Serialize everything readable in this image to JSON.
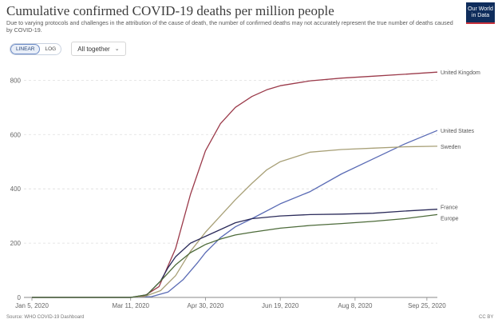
{
  "header": {
    "title": "Cumulative confirmed COVID-19 deaths per million people",
    "subtitle": "Due to varying protocols and challenges in the attribution of the cause of death, the number of confirmed deaths may not accurately represent the true number of deaths caused by COVID-19.",
    "logo_text": "Our World in Data",
    "logo_color": "#0f2d5c"
  },
  "controls": {
    "linear_label": "LINEAR",
    "log_label": "LOG",
    "active_scale": "linear",
    "entity_select_label": "All together"
  },
  "footer": {
    "source": "Source: WHO COVID-19 Dashboard",
    "license": "CC BY"
  },
  "chart_data": {
    "type": "line",
    "title": "Cumulative confirmed COVID-19 deaths per million people",
    "xlabel": "",
    "ylabel": "",
    "x_ticks": [
      "Jan 5, 2020",
      "Mar 11, 2020",
      "Apr 30, 2020",
      "Jun 19, 2020",
      "Aug 8, 2020",
      "Sep 25, 2020"
    ],
    "y_ticks": [
      0,
      200,
      400,
      600,
      800
    ],
    "xlim": [
      "2020-01-05",
      "2020-10-02"
    ],
    "ylim": [
      0,
      860
    ],
    "grid": "horizontal dashed",
    "legend": "line-end labels",
    "series": [
      {
        "name": "United Kingdom",
        "color": "#9b3a4a",
        "points": [
          [
            "2020-01-05",
            0
          ],
          [
            "2020-03-11",
            0
          ],
          [
            "2020-03-20",
            5
          ],
          [
            "2020-03-30",
            40
          ],
          [
            "2020-04-10",
            180
          ],
          [
            "2020-04-20",
            380
          ],
          [
            "2020-04-30",
            540
          ],
          [
            "2020-05-10",
            640
          ],
          [
            "2020-05-20",
            700
          ],
          [
            "2020-05-31",
            740
          ],
          [
            "2020-06-10",
            765
          ],
          [
            "2020-06-19",
            780
          ],
          [
            "2020-07-09",
            798
          ],
          [
            "2020-07-30",
            808
          ],
          [
            "2020-08-20",
            815
          ],
          [
            "2020-09-10",
            822
          ],
          [
            "2020-10-02",
            830
          ]
        ]
      },
      {
        "name": "United States",
        "color": "#5a6bb5",
        "points": [
          [
            "2020-01-05",
            0
          ],
          [
            "2020-03-11",
            0
          ],
          [
            "2020-03-25",
            3
          ],
          [
            "2020-04-05",
            20
          ],
          [
            "2020-04-15",
            65
          ],
          [
            "2020-04-25",
            130
          ],
          [
            "2020-04-30",
            165
          ],
          [
            "2020-05-10",
            220
          ],
          [
            "2020-05-20",
            260
          ],
          [
            "2020-05-31",
            290
          ],
          [
            "2020-06-19",
            345
          ],
          [
            "2020-07-09",
            390
          ],
          [
            "2020-07-30",
            455
          ],
          [
            "2020-08-20",
            510
          ],
          [
            "2020-09-10",
            565
          ],
          [
            "2020-10-02",
            615
          ]
        ]
      },
      {
        "name": "Sweden",
        "color": "#a8a077",
        "points": [
          [
            "2020-01-05",
            0
          ],
          [
            "2020-03-11",
            0
          ],
          [
            "2020-03-20",
            3
          ],
          [
            "2020-03-31",
            25
          ],
          [
            "2020-04-10",
            80
          ],
          [
            "2020-04-20",
            170
          ],
          [
            "2020-04-30",
            240
          ],
          [
            "2020-05-10",
            300
          ],
          [
            "2020-05-20",
            360
          ],
          [
            "2020-05-31",
            420
          ],
          [
            "2020-06-10",
            470
          ],
          [
            "2020-06-19",
            500
          ],
          [
            "2020-07-09",
            535
          ],
          [
            "2020-07-30",
            545
          ],
          [
            "2020-08-20",
            550
          ],
          [
            "2020-09-10",
            555
          ],
          [
            "2020-10-02",
            557
          ]
        ]
      },
      {
        "name": "France",
        "color": "#2b2b5a",
        "points": [
          [
            "2020-01-05",
            0
          ],
          [
            "2020-03-11",
            0
          ],
          [
            "2020-03-22",
            10
          ],
          [
            "2020-03-31",
            60
          ],
          [
            "2020-04-05",
            110
          ],
          [
            "2020-04-10",
            150
          ],
          [
            "2020-04-15",
            175
          ],
          [
            "2020-04-20",
            200
          ],
          [
            "2020-04-30",
            225
          ],
          [
            "2020-05-10",
            250
          ],
          [
            "2020-05-20",
            275
          ],
          [
            "2020-05-31",
            290
          ],
          [
            "2020-06-19",
            300
          ],
          [
            "2020-07-09",
            305
          ],
          [
            "2020-07-30",
            307
          ],
          [
            "2020-08-20",
            310
          ],
          [
            "2020-09-10",
            318
          ],
          [
            "2020-10-02",
            325
          ]
        ]
      },
      {
        "name": "Europe",
        "color": "#4d6b3a",
        "points": [
          [
            "2020-01-05",
            0
          ],
          [
            "2020-03-11",
            0
          ],
          [
            "2020-03-22",
            10
          ],
          [
            "2020-03-31",
            60
          ],
          [
            "2020-04-10",
            120
          ],
          [
            "2020-04-20",
            165
          ],
          [
            "2020-04-30",
            195
          ],
          [
            "2020-05-10",
            215
          ],
          [
            "2020-05-20",
            230
          ],
          [
            "2020-05-31",
            240
          ],
          [
            "2020-06-19",
            255
          ],
          [
            "2020-07-09",
            265
          ],
          [
            "2020-07-30",
            272
          ],
          [
            "2020-08-20",
            280
          ],
          [
            "2020-09-10",
            290
          ],
          [
            "2020-10-02",
            305
          ]
        ]
      }
    ]
  }
}
